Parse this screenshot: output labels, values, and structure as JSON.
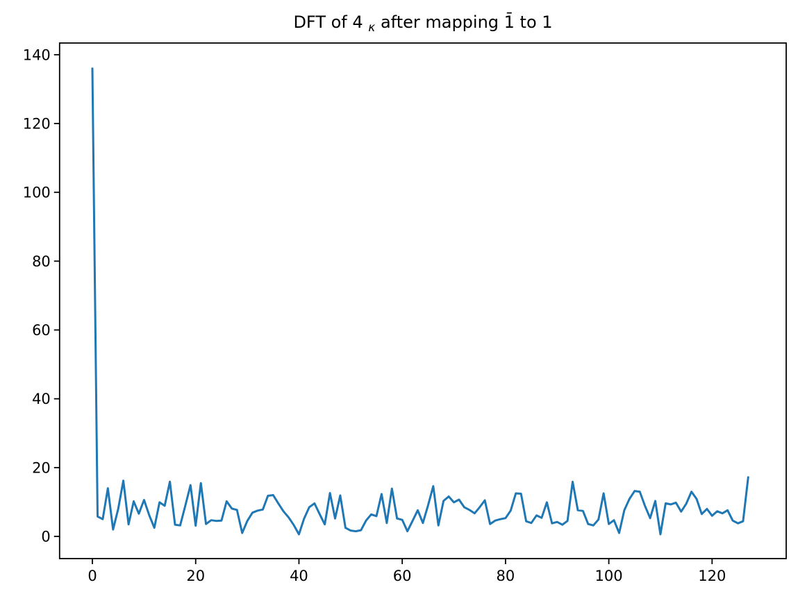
{
  "chart_data": {
    "type": "line",
    "title": "DFT of 4κ after mapping 1̄ to 1",
    "title_parts": {
      "prefix": "DFT of 4",
      "subscript": "κ",
      "suffix": " after mapping 1̄ to 1"
    },
    "x_description": "frequency bin k = 0..127 (integer index, one point per bin)",
    "values": [
      136,
      5.8,
      5.0,
      14.0,
      2.0,
      8.0,
      16.2,
      3.5,
      10.2,
      6.6,
      10.6,
      6.2,
      2.5,
      9.9,
      8.9,
      15.9,
      3.4,
      3.2,
      9.0,
      14.9,
      3.1,
      15.5,
      3.6,
      4.7,
      4.5,
      4.6,
      10.2,
      8.1,
      7.7,
      1.0,
      4.5,
      6.9,
      7.5,
      7.8,
      11.8,
      12.0,
      9.6,
      7.3,
      5.5,
      3.3,
      0.6,
      5.2,
      8.5,
      9.6,
      6.5,
      3.5,
      12.6,
      5.2,
      11.9,
      2.5,
      1.7,
      1.5,
      1.8,
      4.6,
      6.4,
      5.9,
      12.3,
      3.9,
      13.9,
      5.2,
      4.8,
      1.5,
      4.5,
      7.6,
      3.9,
      9.0,
      14.6,
      3.2,
      10.3,
      11.6,
      9.9,
      10.7,
      8.5,
      7.7,
      6.7,
      8.5,
      10.5,
      3.6,
      4.6,
      5.0,
      5.3,
      7.5,
      12.5,
      12.4,
      4.4,
      3.9,
      6.1,
      5.4,
      9.9,
      3.8,
      4.2,
      3.4,
      4.5,
      15.9,
      7.6,
      7.4,
      3.6,
      3.2,
      4.9,
      12.5,
      3.6,
      4.7,
      1.0,
      7.6,
      10.9,
      13.2,
      13.0,
      8.9,
      5.3,
      10.3,
      0.6,
      9.6,
      9.3,
      9.8,
      7.2,
      9.5,
      13.0,
      10.9,
      6.5,
      8.0,
      6.0,
      7.3,
      6.7,
      7.6,
      4.6,
      3.8,
      4.4,
      17.2
    ],
    "xlabel": "",
    "ylabel": "",
    "x_ticks": [
      0,
      20,
      40,
      60,
      80,
      100,
      120
    ],
    "y_ticks": [
      0,
      20,
      40,
      60,
      80,
      100,
      120,
      140
    ],
    "xlim": [
      -6.35,
      134.35
    ],
    "ylim": [
      -6.45,
      143.4
    ],
    "grid": false,
    "legend": null,
    "line_color": "#1f77b4",
    "axis_color": "#000000",
    "background": "#ffffff"
  }
}
